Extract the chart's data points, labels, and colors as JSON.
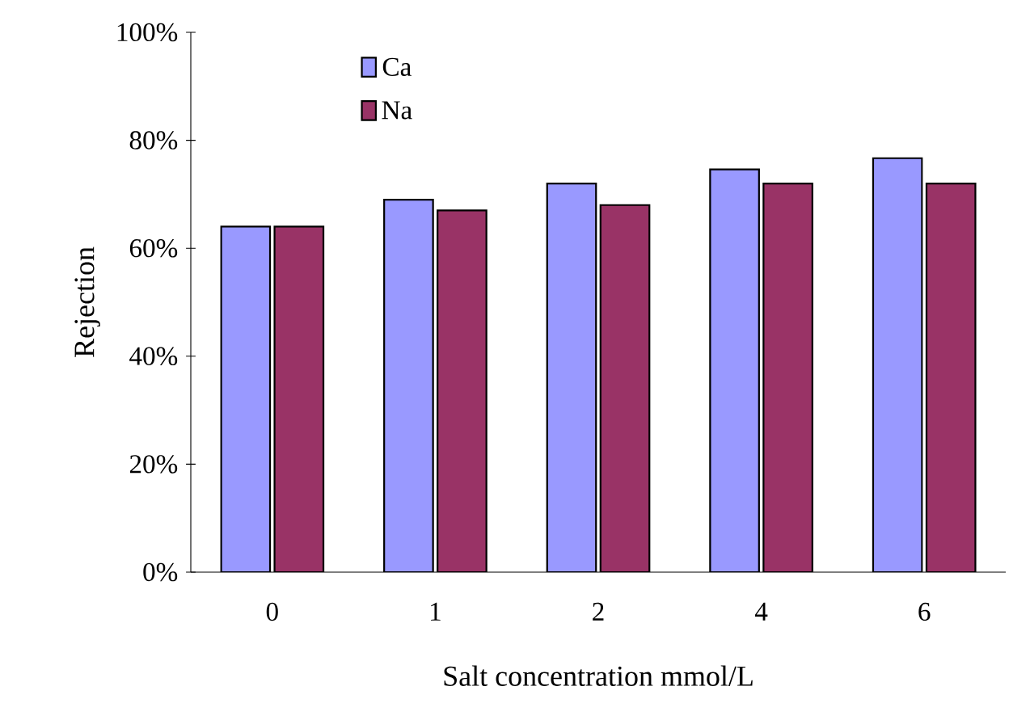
{
  "chart_data": {
    "type": "bar",
    "xlabel": "Salt concentration mmol/L",
    "ylabel": "Rejection",
    "categories": [
      "0",
      "1",
      "2",
      "4",
      "6"
    ],
    "series": [
      {
        "name": "Ca",
        "color": "#9999ff",
        "values": [
          64,
          69,
          72,
          74.6,
          76.7
        ]
      },
      {
        "name": "Na",
        "color": "#993366",
        "values": [
          64,
          67,
          68,
          72,
          72
        ]
      }
    ],
    "ylim": [
      0,
      100
    ],
    "yticks": [
      {
        "value": 0,
        "label": "0%"
      },
      {
        "value": 20,
        "label": "20%"
      },
      {
        "value": 40,
        "label": "40%"
      },
      {
        "value": 60,
        "label": "60%"
      },
      {
        "value": 80,
        "label": "80%"
      },
      {
        "value": 100,
        "label": "100%"
      }
    ],
    "grid": false,
    "legend": "top left"
  }
}
